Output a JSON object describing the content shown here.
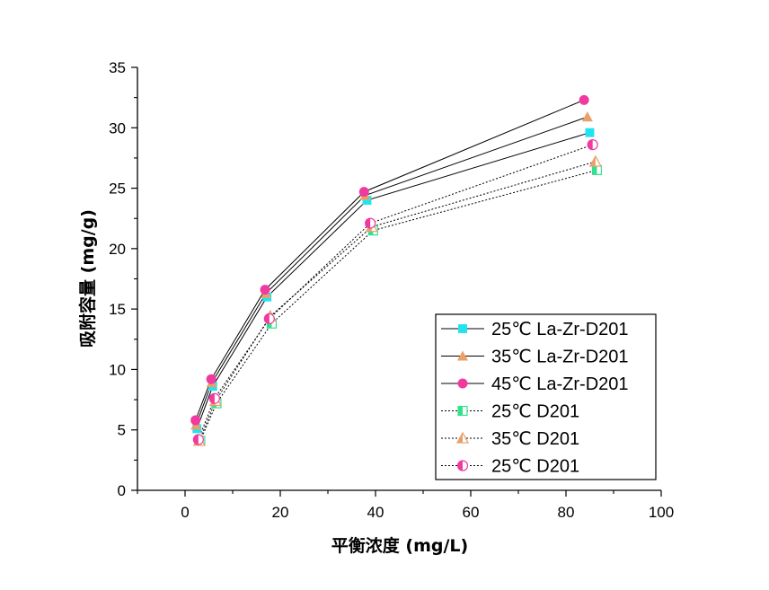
{
  "chart_data": {
    "type": "line",
    "title": "",
    "xlabel": "平衡浓度 (mg/L)",
    "ylabel": "吸附容量 (mg/g)",
    "xlim": [
      -10,
      100
    ],
    "ylim": [
      0,
      35
    ],
    "x_ticks": [
      0,
      20,
      40,
      60,
      80,
      100
    ],
    "y_ticks": [
      0,
      5,
      10,
      15,
      20,
      25,
      30,
      35
    ],
    "grid": false,
    "legend_position": "bottom-right",
    "series": [
      {
        "name": "25℃ La-Zr-D201",
        "line": "solid",
        "marker": "square",
        "fill": "full",
        "color": "#22e4f0",
        "x": [
          2.5,
          5.8,
          17.2,
          38.2,
          85.0
        ],
        "y": [
          5.1,
          8.6,
          16.0,
          24.0,
          29.6
        ]
      },
      {
        "name": "35℃ La-Zr-D201",
        "line": "solid",
        "marker": "triangle",
        "fill": "full",
        "color": "#e9a06a",
        "x": [
          2.3,
          5.6,
          17.0,
          37.8,
          84.5
        ],
        "y": [
          5.4,
          8.9,
          16.3,
          24.4,
          30.9
        ]
      },
      {
        "name": "45℃ La-Zr-D201",
        "line": "solid",
        "marker": "circle",
        "fill": "full",
        "color": "#f03aa0",
        "x": [
          2.2,
          5.5,
          16.8,
          37.6,
          83.8
        ],
        "y": [
          5.8,
          9.2,
          16.6,
          24.7,
          32.3
        ]
      },
      {
        "name": "25℃ D201",
        "line": "dotted",
        "marker": "square",
        "fill": "half",
        "color": "#34e08e",
        "x": [
          3.2,
          6.6,
          18.2,
          39.5,
          86.5
        ],
        "y": [
          4.1,
          7.2,
          13.8,
          21.5,
          26.5
        ]
      },
      {
        "name": "35℃ D201",
        "line": "dotted",
        "marker": "triangle",
        "fill": "half",
        "color": "#e9a06a",
        "x": [
          3.0,
          6.4,
          17.9,
          39.2,
          86.2
        ],
        "y": [
          4.1,
          7.4,
          14.4,
          21.8,
          27.2
        ]
      },
      {
        "name": "25℃ D201",
        "line": "dotted",
        "marker": "circle",
        "fill": "half",
        "color": "#f03aa0",
        "x": [
          2.8,
          6.2,
          17.7,
          38.9,
          85.6
        ],
        "y": [
          4.2,
          7.6,
          14.2,
          22.1,
          28.6
        ]
      }
    ]
  }
}
